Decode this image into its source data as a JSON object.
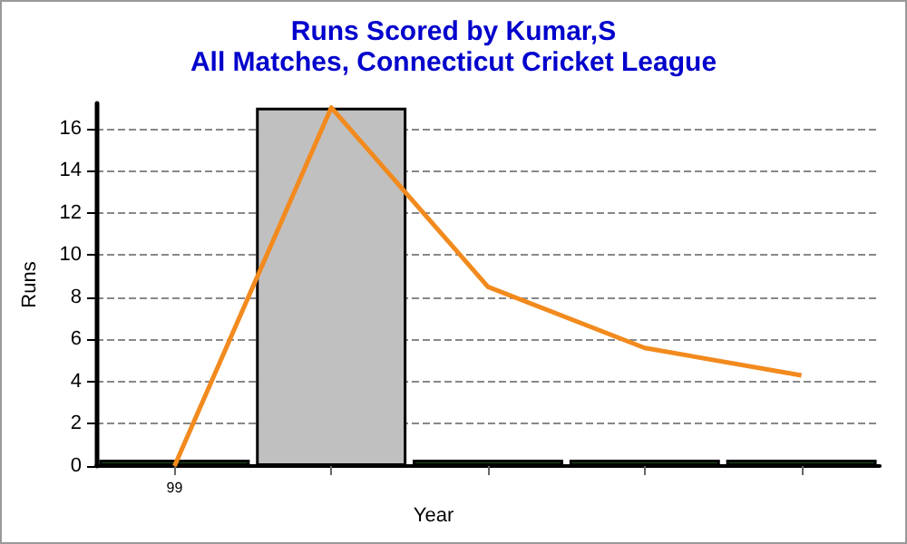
{
  "chart_data": {
    "type": "bar",
    "title": "Runs Scored by Kumar,S",
    "subtitle": "All Matches, Connecticut Cricket League",
    "xlabel": "Year",
    "ylabel": "Runs",
    "categories": [
      "99",
      null,
      null,
      null,
      null
    ],
    "series": [
      {
        "values": [
          0.3,
          17,
          0.3,
          0.3,
          0.3
        ],
        "colors": [
          "#1f4f1f",
          "#c0c0c0",
          "#1f4f1f",
          "#1f4f1f",
          "#1f4f1f"
        ]
      },
      {
        "type": "line",
        "color": "#f28a1e",
        "values": [
          0,
          17,
          8.5,
          5.6,
          4.3
        ]
      }
    ],
    "ylim": [
      0,
      17.2
    ],
    "yticks": [
      0,
      2,
      4,
      6,
      8,
      10,
      12,
      14,
      16
    ],
    "grid": "y",
    "marker": "none",
    "line_style": "solid"
  }
}
